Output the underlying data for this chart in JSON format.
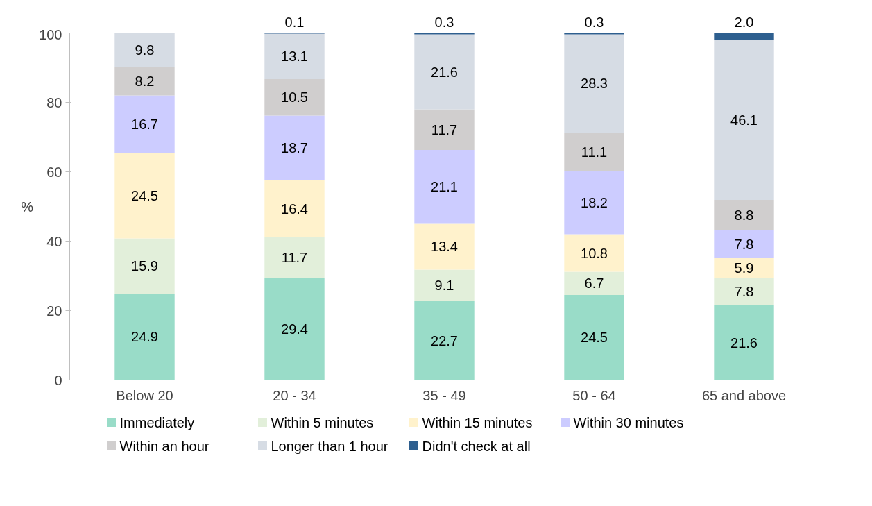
{
  "chart_data": {
    "type": "bar",
    "stacked": true,
    "ylabel": "%",
    "categories": [
      "Below 20",
      "20 - 34",
      "35 - 49",
      "50 - 64",
      "65 and above"
    ],
    "series": [
      {
        "name": "Immediately",
        "color": "#99dcc8",
        "values": [
          24.9,
          29.4,
          22.7,
          24.5,
          21.6
        ]
      },
      {
        "name": "Within 5 minutes",
        "color": "#e2efda",
        "values": [
          15.9,
          11.7,
          9.1,
          6.7,
          7.8
        ]
      },
      {
        "name": "Within 15 minutes",
        "color": "#fff2cc",
        "values": [
          24.5,
          16.4,
          13.4,
          10.8,
          5.9
        ]
      },
      {
        "name": "Within 30 minutes",
        "color": "#ccccff",
        "values": [
          16.7,
          18.7,
          21.1,
          18.2,
          7.8
        ]
      },
      {
        "name": "Within an hour",
        "color": "#d0cece",
        "values": [
          8.2,
          10.5,
          11.7,
          11.1,
          8.8
        ]
      },
      {
        "name": "Longer than 1 hour",
        "color": "#d6dce4",
        "values": [
          9.8,
          13.1,
          21.6,
          28.3,
          46.1
        ]
      },
      {
        "name": "Didn't check at all",
        "color": "#2e5f8f",
        "values": [
          null,
          0.1,
          0.3,
          0.3,
          2
        ],
        "value_labels": [
          null,
          "0.1",
          "0.3",
          "0.3",
          "2.0"
        ]
      }
    ],
    "ylim": [
      0,
      100
    ],
    "yticks": [
      0,
      20,
      40,
      60,
      80,
      100
    ],
    "data_labels": true,
    "grid": false,
    "legend": "bottom"
  }
}
